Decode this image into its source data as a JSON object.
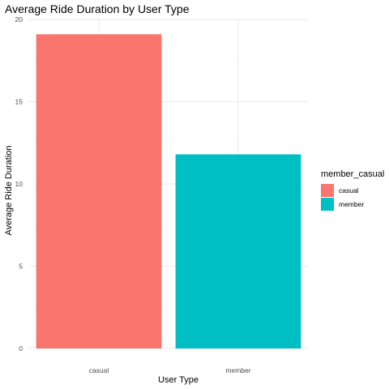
{
  "chart_data": {
    "type": "bar",
    "title": "Average Ride Duration by User Type",
    "xlabel": "User Type",
    "ylabel": "Average Ride Duration",
    "categories": [
      "casual",
      "member"
    ],
    "values": [
      19.1,
      11.8
    ],
    "ylim": [
      0,
      20
    ],
    "yticks": [
      0,
      5,
      10,
      15,
      20
    ],
    "grid": true,
    "legend": {
      "title": "member_casual",
      "placement": "right",
      "entries": [
        "casual",
        "member"
      ]
    },
    "colors": {
      "casual": "#F8766D",
      "member": "#00BFC4"
    }
  }
}
